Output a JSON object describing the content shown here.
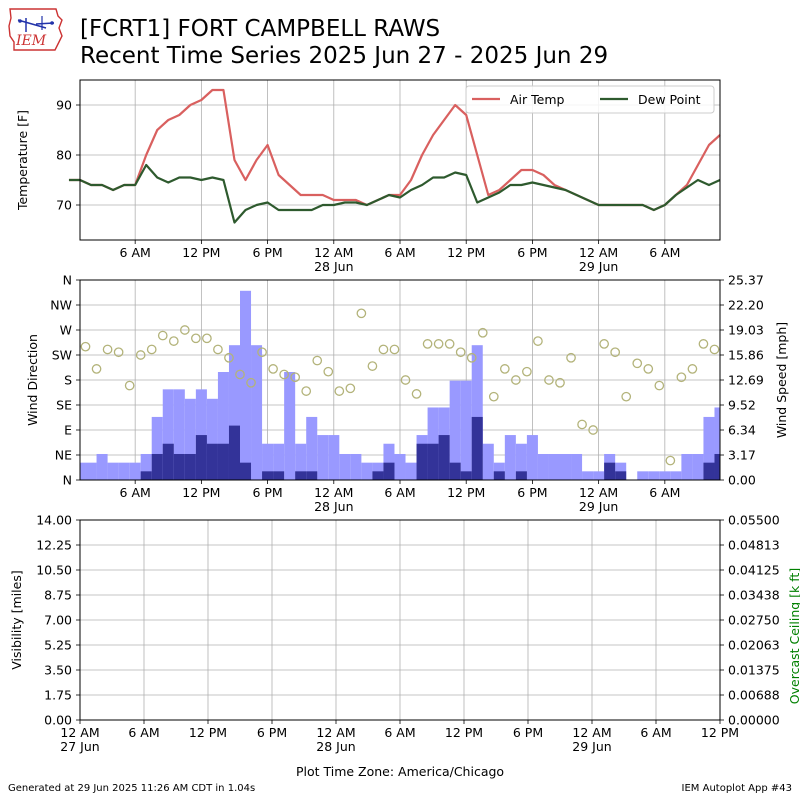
{
  "header": {
    "title_line1": "[FCRT1] FORT CAMPBELL RAWS",
    "title_line2": "Recent Time Series 2025 Jun 27 - 2025 Jun 29",
    "logo_text": "IEM"
  },
  "footer": {
    "generated": "Generated at 29 Jun 2025 11:26 AM CDT in 1.04s",
    "app": "IEM Autoplot App #43"
  },
  "colors": {
    "air_temp": "#d9605f",
    "dew_point": "#2e5a2e",
    "gust_bar": "#9999ff",
    "speed_bar": "#333399",
    "wind_dir_marker": "#b3b37a",
    "ceiling_axis": "#008000",
    "grid": "#b0b0b0"
  },
  "chart_data": [
    {
      "type": "line",
      "ylabel": "Temperature [F]",
      "ylim": [
        63,
        95
      ],
      "yticks": [
        70,
        80,
        90
      ],
      "grid": true,
      "legend": "top-right",
      "x_hours_from_jun27_midnight_ticks_note": "",
      "xticks": [
        {
          "label": "6 AM",
          "sub": ""
        },
        {
          "label": "12 PM",
          "sub": ""
        },
        {
          "label": "6 PM",
          "sub": ""
        },
        {
          "label": "12 AM",
          "sub": "28 Jun"
        },
        {
          "label": "6 AM",
          "sub": ""
        },
        {
          "label": "12 PM",
          "sub": ""
        },
        {
          "label": "6 PM",
          "sub": ""
        },
        {
          "label": "12 AM",
          "sub": "29 Jun"
        },
        {
          "label": "6 AM",
          "sub": ""
        }
      ],
      "series": [
        {
          "name": "Air Temp",
          "x": [
            "2025-06-27 00:00",
            "2025-06-27 01:00",
            "2025-06-27 02:00",
            "2025-06-27 03:00",
            "2025-06-27 04:00",
            "2025-06-27 05:00",
            "2025-06-27 06:00",
            "2025-06-27 07:00",
            "2025-06-27 08:00",
            "2025-06-27 09:00",
            "2025-06-27 10:00",
            "2025-06-27 11:00",
            "2025-06-27 12:00",
            "2025-06-27 13:00",
            "2025-06-27 14:00",
            "2025-06-27 15:00",
            "2025-06-27 16:00",
            "2025-06-27 17:00",
            "2025-06-27 18:00",
            "2025-06-27 19:00",
            "2025-06-27 20:00",
            "2025-06-27 21:00",
            "2025-06-27 22:00",
            "2025-06-27 23:00",
            "2025-06-28 00:00",
            "2025-06-28 01:00",
            "2025-06-28 02:00",
            "2025-06-28 03:00",
            "2025-06-28 04:00",
            "2025-06-28 05:00",
            "2025-06-28 06:00",
            "2025-06-28 07:00",
            "2025-06-28 08:00",
            "2025-06-28 09:00",
            "2025-06-28 10:00",
            "2025-06-28 11:00",
            "2025-06-28 12:00",
            "2025-06-28 13:00",
            "2025-06-28 14:00",
            "2025-06-28 15:00",
            "2025-06-28 16:00",
            "2025-06-28 17:00",
            "2025-06-28 18:00",
            "2025-06-28 19:00",
            "2025-06-28 20:00",
            "2025-06-28 21:00",
            "2025-06-28 22:00",
            "2025-06-28 23:00",
            "2025-06-29 00:00",
            "2025-06-29 01:00",
            "2025-06-29 02:00",
            "2025-06-29 03:00",
            "2025-06-29 04:00",
            "2025-06-29 05:00",
            "2025-06-29 06:00",
            "2025-06-29 07:00",
            "2025-06-29 08:00",
            "2025-06-29 09:00",
            "2025-06-29 10:00",
            "2025-06-29 11:00"
          ],
          "values": [
            75,
            75,
            74,
            74,
            73,
            74,
            74,
            80,
            85,
            87,
            88,
            90,
            91,
            93,
            93,
            79,
            75,
            79,
            82,
            76,
            74,
            72,
            72,
            72,
            71,
            71,
            71,
            70,
            71,
            72,
            72,
            75,
            80,
            84,
            87,
            90,
            88,
            80,
            72,
            73,
            75,
            77,
            77,
            76,
            74,
            73,
            72,
            71,
            70,
            70,
            70,
            70,
            70,
            69,
            70,
            72,
            74,
            78,
            82,
            84
          ]
        },
        {
          "name": "Dew Point",
          "x": [
            "2025-06-27 00:00",
            "2025-06-27 01:00",
            "2025-06-27 02:00",
            "2025-06-27 03:00",
            "2025-06-27 04:00",
            "2025-06-27 05:00",
            "2025-06-27 06:00",
            "2025-06-27 07:00",
            "2025-06-27 08:00",
            "2025-06-27 09:00",
            "2025-06-27 10:00",
            "2025-06-27 11:00",
            "2025-06-27 12:00",
            "2025-06-27 13:00",
            "2025-06-27 14:00",
            "2025-06-27 15:00",
            "2025-06-27 16:00",
            "2025-06-27 17:00",
            "2025-06-27 18:00",
            "2025-06-27 19:00",
            "2025-06-27 20:00",
            "2025-06-27 21:00",
            "2025-06-27 22:00",
            "2025-06-27 23:00",
            "2025-06-28 00:00",
            "2025-06-28 01:00",
            "2025-06-28 02:00",
            "2025-06-28 03:00",
            "2025-06-28 04:00",
            "2025-06-28 05:00",
            "2025-06-28 06:00",
            "2025-06-28 07:00",
            "2025-06-28 08:00",
            "2025-06-28 09:00",
            "2025-06-28 10:00",
            "2025-06-28 11:00",
            "2025-06-28 12:00",
            "2025-06-28 13:00",
            "2025-06-28 14:00",
            "2025-06-28 15:00",
            "2025-06-28 16:00",
            "2025-06-28 17:00",
            "2025-06-28 18:00",
            "2025-06-28 19:00",
            "2025-06-28 20:00",
            "2025-06-28 21:00",
            "2025-06-28 22:00",
            "2025-06-28 23:00",
            "2025-06-29 00:00",
            "2025-06-29 01:00",
            "2025-06-29 02:00",
            "2025-06-29 03:00",
            "2025-06-29 04:00",
            "2025-06-29 05:00",
            "2025-06-29 06:00",
            "2025-06-29 07:00",
            "2025-06-29 08:00",
            "2025-06-29 09:00",
            "2025-06-29 10:00",
            "2025-06-29 11:00"
          ],
          "values": [
            75,
            75,
            74,
            74,
            73,
            74,
            74,
            78,
            75.5,
            74.5,
            75.5,
            75.5,
            75,
            75.5,
            75,
            66.5,
            69,
            70,
            70.5,
            69,
            69,
            69,
            69,
            70,
            70,
            70.5,
            70.5,
            70,
            71,
            72,
            71.5,
            73,
            74,
            75.5,
            75.5,
            76.5,
            76,
            70.5,
            71.5,
            72.5,
            74,
            74,
            74.5,
            74,
            73.5,
            73,
            72,
            71,
            70,
            70,
            70,
            70,
            70,
            69,
            70,
            72,
            73.5,
            75,
            74,
            75
          ]
        }
      ]
    },
    {
      "type": "bar",
      "ylabel": "Wind Direction",
      "y2label": "Wind Speed [mph]",
      "ylim_speed": [
        0,
        25.37
      ],
      "yticks_direction": [
        "N",
        "NE",
        "E",
        "SE",
        "S",
        "SW",
        "W",
        "NW",
        "N"
      ],
      "yticks_speed": [
        "0.00",
        "3.17",
        "6.34",
        "9.52",
        "12.69",
        "15.86",
        "19.03",
        "22.20",
        "25.37"
      ],
      "grid": true,
      "xticks": [
        {
          "label": "6 AM",
          "sub": ""
        },
        {
          "label": "12 PM",
          "sub": ""
        },
        {
          "label": "6 PM",
          "sub": ""
        },
        {
          "label": "12 AM",
          "sub": "28 Jun"
        },
        {
          "label": "6 AM",
          "sub": ""
        },
        {
          "label": "12 PM",
          "sub": ""
        },
        {
          "label": "6 PM",
          "sub": ""
        },
        {
          "label": "12 AM",
          "sub": "29 Jun"
        },
        {
          "label": "6 AM",
          "sub": ""
        }
      ],
      "x": [
        "2025-06-27 00:00",
        "2025-06-27 01:00",
        "2025-06-27 02:00",
        "2025-06-27 03:00",
        "2025-06-27 04:00",
        "2025-06-27 05:00",
        "2025-06-27 06:00",
        "2025-06-27 07:00",
        "2025-06-27 08:00",
        "2025-06-27 09:00",
        "2025-06-27 10:00",
        "2025-06-27 11:00",
        "2025-06-27 12:00",
        "2025-06-27 13:00",
        "2025-06-27 14:00",
        "2025-06-27 15:00",
        "2025-06-27 16:00",
        "2025-06-27 17:00",
        "2025-06-27 18:00",
        "2025-06-27 19:00",
        "2025-06-27 20:00",
        "2025-06-27 21:00",
        "2025-06-27 22:00",
        "2025-06-27 23:00",
        "2025-06-28 00:00",
        "2025-06-28 01:00",
        "2025-06-28 02:00",
        "2025-06-28 03:00",
        "2025-06-28 04:00",
        "2025-06-28 05:00",
        "2025-06-28 06:00",
        "2025-06-28 07:00",
        "2025-06-28 08:00",
        "2025-06-28 09:00",
        "2025-06-28 10:00",
        "2025-06-28 11:00",
        "2025-06-28 12:00",
        "2025-06-28 13:00",
        "2025-06-28 14:00",
        "2025-06-28 15:00",
        "2025-06-28 16:00",
        "2025-06-28 17:00",
        "2025-06-28 18:00",
        "2025-06-28 19:00",
        "2025-06-28 20:00",
        "2025-06-28 21:00",
        "2025-06-28 22:00",
        "2025-06-28 23:00",
        "2025-06-29 00:00",
        "2025-06-29 01:00",
        "2025-06-29 02:00",
        "2025-06-29 03:00",
        "2025-06-29 04:00",
        "2025-06-29 05:00",
        "2025-06-29 06:00",
        "2025-06-29 07:00",
        "2025-06-29 08:00",
        "2025-06-29 09:00",
        "2025-06-29 10:00",
        "2025-06-29 11:00"
      ],
      "gust_mph": [
        2.2,
        2.2,
        2.2,
        3.3,
        2.2,
        2.2,
        2.2,
        3.3,
        8.0,
        11.5,
        11.5,
        10.3,
        11.5,
        10.3,
        13.7,
        17.1,
        24.0,
        17.1,
        4.6,
        4.6,
        13.7,
        4.6,
        8.0,
        5.7,
        5.7,
        3.3,
        3.3,
        2.2,
        2.2,
        4.6,
        3.3,
        2.2,
        5.7,
        9.2,
        9.2,
        12.6,
        12.6,
        17.1,
        4.6,
        2.2,
        5.7,
        4.6,
        5.7,
        3.3,
        3.3,
        3.3,
        3.3,
        1.1,
        1.1,
        3.3,
        2.2,
        0.0,
        1.1,
        1.1,
        1.1,
        1.1,
        3.3,
        3.3,
        8.0,
        9.2
      ],
      "speed_mph": [
        0,
        0,
        0,
        0,
        0,
        0,
        0,
        1.1,
        3.3,
        4.6,
        3.3,
        3.3,
        5.7,
        4.6,
        4.6,
        6.9,
        2.2,
        0,
        1.1,
        1.1,
        0,
        1.1,
        1.1,
        0,
        0,
        0,
        0,
        0,
        1.1,
        2.2,
        0,
        0,
        4.6,
        4.6,
        5.7,
        2.2,
        1.1,
        8.0,
        0,
        1.1,
        0,
        1.1,
        0,
        0,
        0,
        0,
        0,
        0,
        0,
        2.2,
        1.1,
        0,
        0,
        0,
        0,
        0,
        0,
        0,
        2.2,
        3.3
      ],
      "direction_deg": [
        225,
        195,
        240,
        200,
        235,
        230,
        170,
        225,
        235,
        260,
        250,
        270,
        255,
        255,
        235,
        220,
        190,
        175,
        230,
        200,
        190,
        185,
        160,
        215,
        195,
        160,
        165,
        300,
        205,
        235,
        235,
        180,
        155,
        245,
        245,
        245,
        230,
        220,
        265,
        150,
        200,
        180,
        195,
        250,
        180,
        175,
        220,
        100,
        90,
        245,
        230,
        150,
        210,
        200,
        170,
        35,
        185,
        200,
        245,
        235
      ]
    },
    {
      "type": "line",
      "ylabel": "Visibility [miles]",
      "y2label": "Overcast Ceiling [k ft]",
      "ylim": [
        0,
        14
      ],
      "ylim2": [
        0,
        0.055
      ],
      "yticks": [
        "0.00",
        "1.75",
        "3.50",
        "5.25",
        "7.00",
        "8.75",
        "10.50",
        "12.25",
        "14.00"
      ],
      "yticks2": [
        "0.00000",
        "0.00688",
        "0.01375",
        "0.02063",
        "0.02750",
        "0.03438",
        "0.04125",
        "0.04813",
        "0.05500"
      ],
      "grid": true,
      "xlabel": "Plot Time Zone: America/Chicago",
      "xticks": [
        {
          "label": "12 AM",
          "sub": "27 Jun"
        },
        {
          "label": "6 AM",
          "sub": ""
        },
        {
          "label": "12 PM",
          "sub": ""
        },
        {
          "label": "6 PM",
          "sub": ""
        },
        {
          "label": "12 AM",
          "sub": "28 Jun"
        },
        {
          "label": "6 AM",
          "sub": ""
        },
        {
          "label": "12 PM",
          "sub": ""
        },
        {
          "label": "6 PM",
          "sub": ""
        },
        {
          "label": "12 AM",
          "sub": "29 Jun"
        },
        {
          "label": "6 AM",
          "sub": ""
        },
        {
          "label": "12 PM",
          "sub": ""
        }
      ],
      "series": []
    }
  ]
}
